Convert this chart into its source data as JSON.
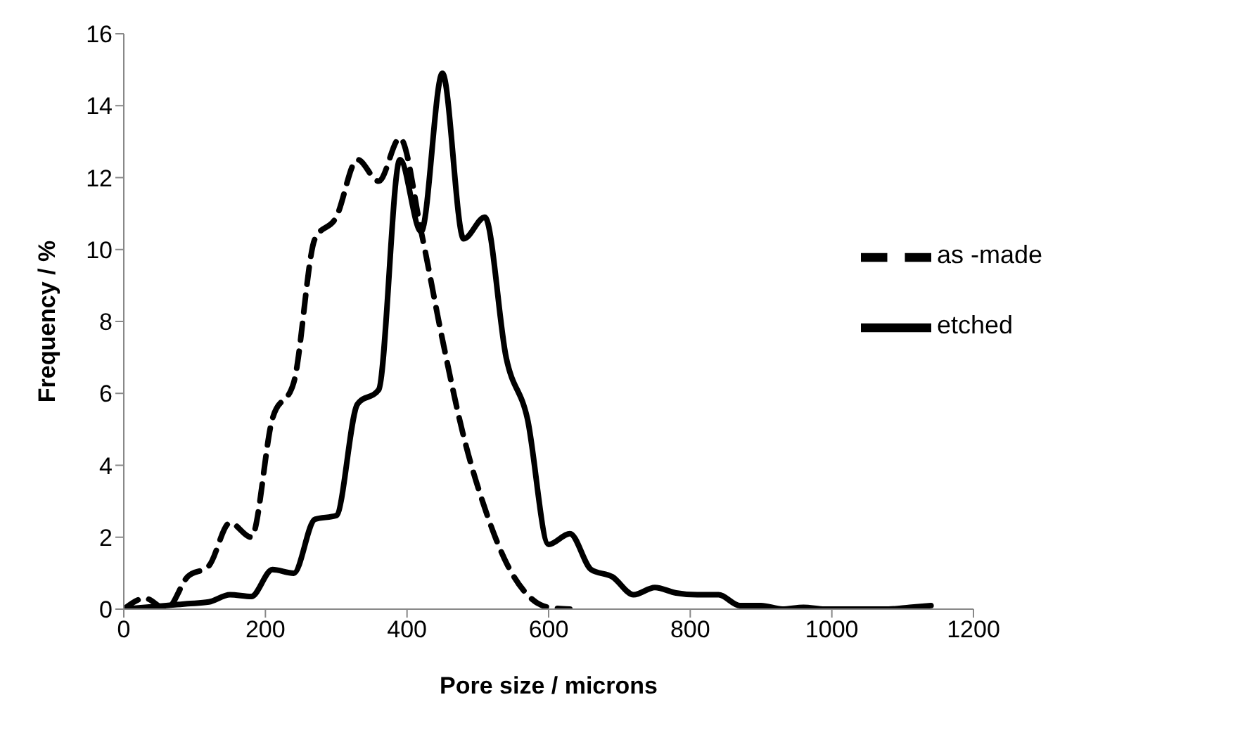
{
  "chart_data": {
    "type": "line",
    "xlabel": "Pore size / microns",
    "ylabel": "Frequency / %",
    "xlim": [
      0,
      1200
    ],
    "xticks": [
      0,
      200,
      400,
      600,
      800,
      1000,
      1200
    ],
    "ylim": [
      0,
      16
    ],
    "yticks": [
      0,
      2,
      4,
      6,
      8,
      10,
      12,
      14,
      16
    ],
    "grid": false,
    "legend": "right",
    "marker": "none",
    "series": [
      {
        "name": "etched",
        "color": "#000000",
        "line_style": "solid",
        "x": [
          0,
          30,
          60,
          90,
          120,
          150,
          180,
          210,
          240,
          270,
          300,
          330,
          360,
          390,
          420,
          450,
          480,
          510,
          540,
          570,
          600,
          630,
          660,
          690,
          720,
          750,
          780,
          810,
          840,
          870,
          900,
          930,
          960,
          990,
          1020,
          1050,
          1080,
          1110,
          1140
        ],
        "values": [
          0,
          0.05,
          0.1,
          0.15,
          0.2,
          0.4,
          0.35,
          1.1,
          1.0,
          2.5,
          2.6,
          5.7,
          6.1,
          12.5,
          10.5,
          14.9,
          10.3,
          10.9,
          7.0,
          5.3,
          1.8,
          2.1,
          1.1,
          0.9,
          0.4,
          0.6,
          0.45,
          0.4,
          0.4,
          0.1,
          0.1,
          0,
          0.05,
          0,
          0,
          0,
          0,
          0.05,
          0.1
        ]
      },
      {
        "name": "as -made",
        "color": "#000000",
        "line_style": "dashed",
        "x": [
          0,
          30,
          60,
          90,
          120,
          150,
          180,
          210,
          240,
          270,
          300,
          330,
          360,
          390,
          420,
          450,
          480,
          510,
          540,
          570,
          600,
          630
        ],
        "values": [
          0,
          0.3,
          0,
          0.9,
          1.2,
          2.4,
          2.0,
          5.3,
          6.3,
          10.3,
          10.9,
          12.5,
          11.9,
          13.1,
          10.5,
          7.5,
          4.8,
          2.8,
          1.3,
          0.4,
          0.05,
          0
        ]
      }
    ]
  }
}
